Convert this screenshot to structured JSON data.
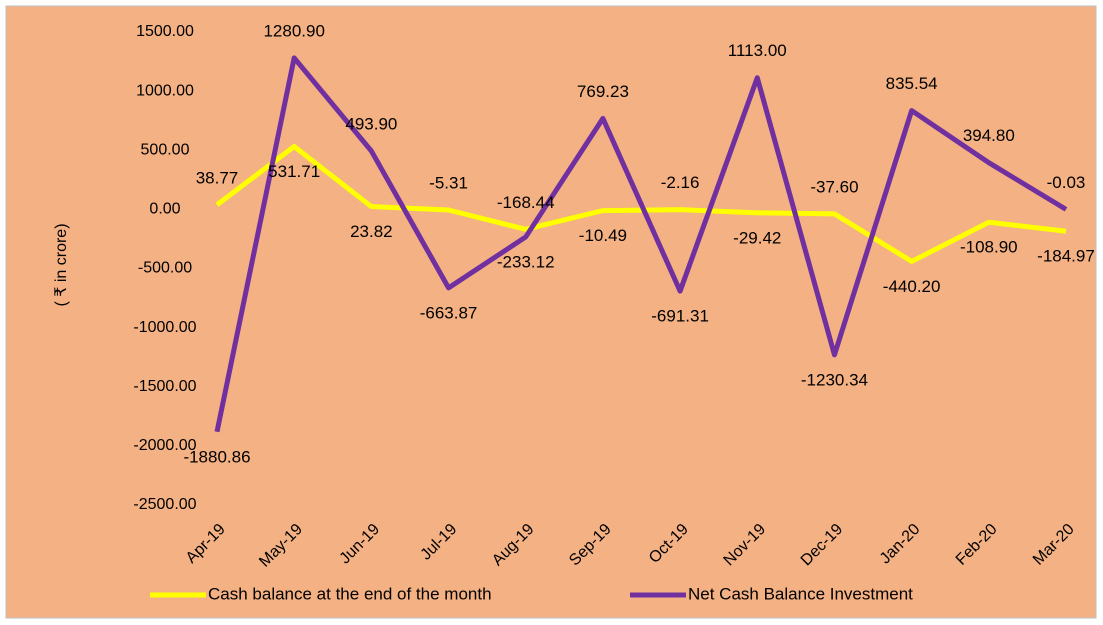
{
  "chart_data": {
    "type": "line",
    "y_axis_label": "( ₹ in crore)",
    "categories": [
      "Apr-19",
      "May-19",
      "Jun-19",
      "Jul-19",
      "Aug-19",
      "Sep-19",
      "Oct-19",
      "Nov-19",
      "Dec-19",
      "Jan-20",
      "Feb-20",
      "Mar-20"
    ],
    "series": [
      {
        "name": "Cash balance at the end of the month",
        "color": "#ffff00",
        "values": [
          38.77,
          531.71,
          23.82,
          -5.31,
          -168.44,
          -10.49,
          -2.16,
          -29.42,
          -37.6,
          -440.2,
          -108.9,
          -184.97
        ],
        "value_labels": [
          "38.77",
          "531.71",
          "23.82",
          "-5.31",
          "-168.44",
          "-10.49",
          "-2.16",
          "-29.42",
          "-37.60",
          "-440.20",
          "-108.90",
          "-184.97"
        ]
      },
      {
        "name": "Net Cash Balance Investment",
        "color": "#7030a0",
        "values": [
          -1880.86,
          1280.9,
          493.9,
          -663.87,
          -233.12,
          769.23,
          -691.31,
          1113.0,
          -1230.34,
          835.54,
          394.8,
          -0.03
        ],
        "value_labels": [
          "-1880.86",
          "1280.90",
          "493.90",
          "-663.87",
          "-233.12",
          "769.23",
          "-691.31",
          "1113.00",
          "-1230.34",
          "835.54",
          "394.80",
          "-0.03"
        ]
      }
    ],
    "ylim": [
      -2500,
      1500
    ],
    "yticks": [
      {
        "value": -2500,
        "label": "-2500.00"
      },
      {
        "value": -2000,
        "label": "-2000.00"
      },
      {
        "value": -1500,
        "label": "-1500.00"
      },
      {
        "value": -1000,
        "label": "-1000.00"
      },
      {
        "value": -500,
        "label": "-500.00"
      },
      {
        "value": 0,
        "label": "0.00"
      },
      {
        "value": 500,
        "label": "500.00"
      },
      {
        "value": 1000,
        "label": "1000.00"
      },
      {
        "value": 1500,
        "label": "1500.00"
      }
    ],
    "grid": false,
    "legend": "bottom",
    "background": "#f4b183"
  }
}
